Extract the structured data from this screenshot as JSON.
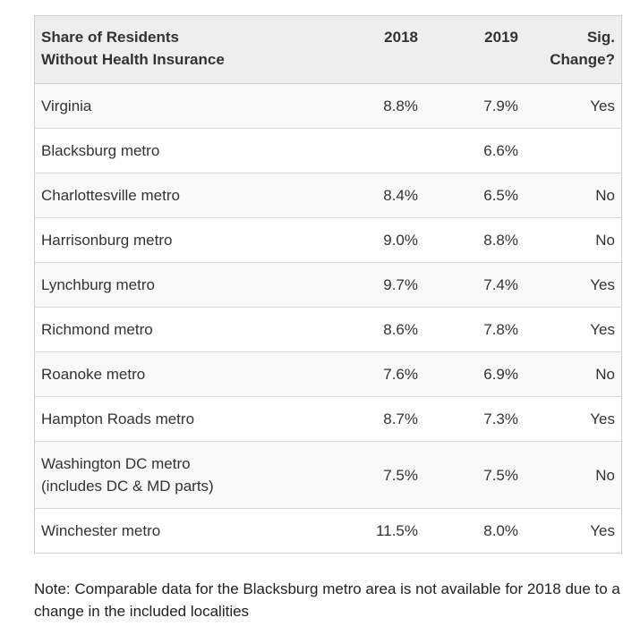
{
  "table": {
    "header": {
      "name_line1": "Share of Residents",
      "name_line2": "Without Health Insurance",
      "y2018": "2018",
      "y2019": "2019",
      "sig": "Sig. Change?"
    },
    "rows": [
      {
        "name": "Virginia",
        "name2": "",
        "y2018": "8.8%",
        "y2019": "7.9%",
        "sig": "Yes"
      },
      {
        "name": "Blacksburg metro",
        "name2": "",
        "y2018": "",
        "y2019": "6.6%",
        "sig": ""
      },
      {
        "name": "Charlottesville metro",
        "name2": "",
        "y2018": "8.4%",
        "y2019": "6.5%",
        "sig": "No"
      },
      {
        "name": "Harrisonburg metro",
        "name2": "",
        "y2018": "9.0%",
        "y2019": "8.8%",
        "sig": "No"
      },
      {
        "name": "Lynchburg metro",
        "name2": "",
        "y2018": "9.7%",
        "y2019": "7.4%",
        "sig": "Yes"
      },
      {
        "name": "Richmond metro",
        "name2": "",
        "y2018": "8.6%",
        "y2019": "7.8%",
        "sig": "Yes"
      },
      {
        "name": "Roanoke metro",
        "name2": "",
        "y2018": "7.6%",
        "y2019": "6.9%",
        "sig": "No"
      },
      {
        "name": "Hampton Roads metro",
        "name2": "",
        "y2018": "8.7%",
        "y2019": "7.3%",
        "sig": "Yes"
      },
      {
        "name": "Washington DC metro",
        "name2": "(includes DC & MD parts)",
        "y2018": "7.5%",
        "y2019": "7.5%",
        "sig": "No"
      },
      {
        "name": "Winchester metro",
        "name2": "",
        "y2018": "11.5%",
        "y2019": "8.0%",
        "sig": "Yes"
      }
    ]
  },
  "note": "Note: Comparable data for the Blacksburg metro area is not available for 2018 due to a change in the included localities"
}
